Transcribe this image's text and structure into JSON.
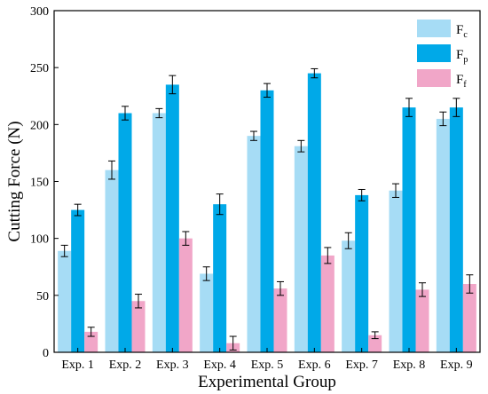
{
  "chart_data": {
    "type": "bar",
    "title": "",
    "xlabel": "Experimental Group",
    "ylabel": "Cutting Force (N)",
    "ylim": [
      0,
      300
    ],
    "yticks": [
      0,
      50,
      100,
      150,
      200,
      250,
      300
    ],
    "categories": [
      "Exp. 1",
      "Exp. 2",
      "Exp. 3",
      "Exp. 4",
      "Exp. 5",
      "Exp. 6",
      "Exp. 7",
      "Exp. 8",
      "Exp. 9"
    ],
    "legend_position": "top-right",
    "grid": false,
    "series": [
      {
        "name": "F",
        "subscript": "c",
        "color": "#a6dcf5",
        "values": [
          89,
          160,
          210,
          69,
          190,
          181,
          98,
          142,
          205
        ],
        "errors": [
          5,
          8,
          4,
          6,
          4,
          5,
          7,
          6,
          6
        ]
      },
      {
        "name": "F",
        "subscript": "p",
        "color": "#00a9e8",
        "values": [
          125,
          210,
          235,
          130,
          230,
          245,
          138,
          215,
          215
        ],
        "errors": [
          5,
          6,
          8,
          9,
          6,
          4,
          5,
          8,
          8
        ]
      },
      {
        "name": "F",
        "subscript": "f",
        "color": "#f1a6c8",
        "values": [
          18,
          45,
          100,
          8,
          56,
          85,
          15,
          55,
          60
        ],
        "errors": [
          4,
          6,
          6,
          6,
          6,
          7,
          3,
          6,
          8
        ]
      }
    ]
  }
}
